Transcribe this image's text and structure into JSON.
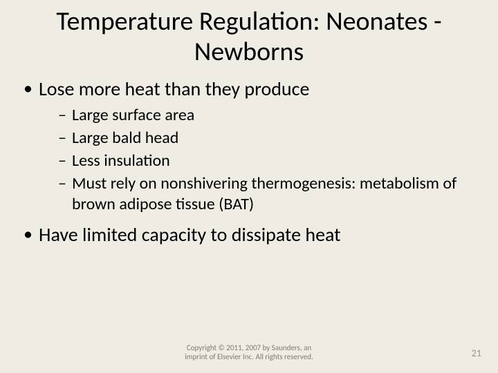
{
  "background_color": "#eeece3",
  "text_color": "#000000",
  "title": "Temperature Regulation: Neonates -Newborns",
  "title_fontsize": 38,
  "bullets": [
    {
      "text": "Lose more heat than they produce",
      "sub": [
        "Large surface area",
        "Large bald head",
        "Less insulation",
        "Must rely on nonshivering thermogenesis: metabolism of brown adipose tissue (BAT)"
      ]
    },
    {
      "text": "Have limited capacity to dissipate heat",
      "sub": []
    }
  ],
  "body_fontsize_l1": 28,
  "body_fontsize_l2": 24,
  "copyright_line1": "Copyright © 2011, 2007 by Saunders, an",
  "copyright_line2": "imprint of Elsevier Inc. All rights reserved.",
  "copyright_color": "#7e7a70",
  "copyright_fontsize": 11,
  "page_number": "21",
  "page_number_color": "#a98f7b",
  "page_number_fontsize": 14
}
